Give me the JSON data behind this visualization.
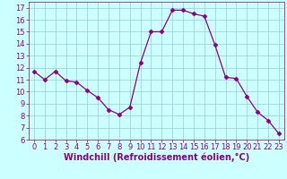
{
  "x": [
    0,
    1,
    2,
    3,
    4,
    5,
    6,
    7,
    8,
    9,
    10,
    11,
    12,
    13,
    14,
    15,
    16,
    17,
    18,
    19,
    20,
    21,
    22,
    23
  ],
  "y": [
    11.7,
    11.0,
    11.7,
    10.9,
    10.8,
    10.1,
    9.5,
    8.5,
    8.1,
    8.7,
    12.4,
    15.0,
    15.0,
    16.8,
    16.8,
    16.5,
    16.3,
    13.9,
    11.2,
    11.1,
    9.6,
    8.3,
    7.6,
    6.5
  ],
  "line_color": "#880088",
  "marker": "D",
  "marker_size": 2.5,
  "bg_color": "#ccffff",
  "grid_color": "#99cccc",
  "xlabel": "Windchill (Refroidissement éolien,°C)",
  "ylim": [
    6,
    17.5
  ],
  "yticks": [
    6,
    7,
    8,
    9,
    10,
    11,
    12,
    13,
    14,
    15,
    16,
    17
  ],
  "xticks": [
    0,
    1,
    2,
    3,
    4,
    5,
    6,
    7,
    8,
    9,
    10,
    11,
    12,
    13,
    14,
    15,
    16,
    17,
    18,
    19,
    20,
    21,
    22,
    23
  ],
  "xlim": [
    -0.5,
    23.5
  ],
  "xlabel_fontsize": 7,
  "tick_fontsize": 6,
  "axis_label_color": "#880088",
  "tick_color": "#880088",
  "spine_color": "#880088"
}
